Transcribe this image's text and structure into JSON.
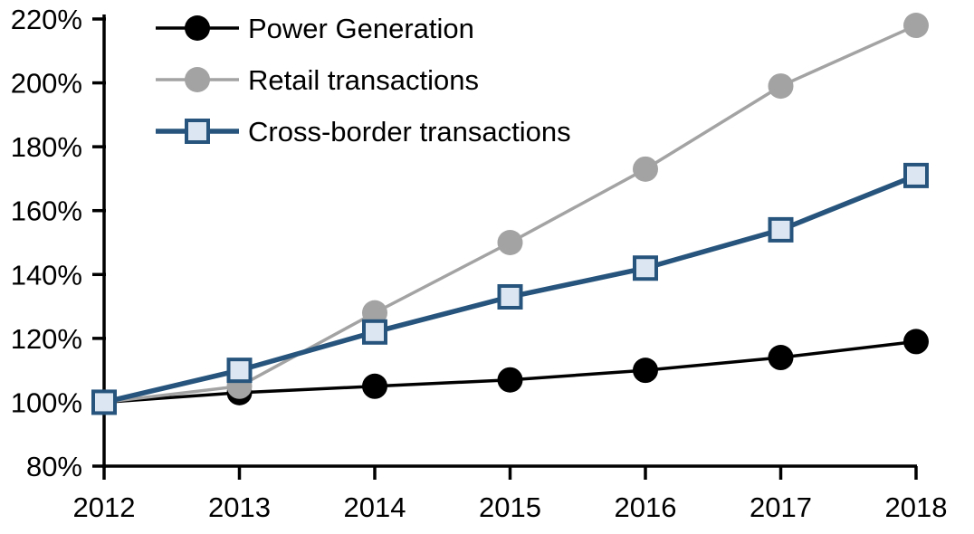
{
  "chart_data": {
    "type": "line",
    "title": "",
    "xlabel": "",
    "ylabel": "",
    "x_labels": [
      "2012",
      "2013",
      "2014",
      "2015",
      "2016",
      "2017",
      "2018"
    ],
    "y_tick_labels": [
      "80%",
      "100%",
      "120%",
      "140%",
      "160%",
      "180%",
      "200%",
      "220%"
    ],
    "ylim": [
      80,
      220
    ],
    "y_tick_step": 20,
    "grid": false,
    "legend_position": "top-left-inside",
    "axis_color": "#000000",
    "series": [
      {
        "name": "Power Generation",
        "values": [
          100,
          103,
          105,
          107,
          110,
          114,
          119
        ],
        "color": "#000000",
        "marker": "circle",
        "marker_fill": "#000000",
        "line_width": 3.5
      },
      {
        "name": "Retail transactions",
        "values": [
          100,
          105,
          128,
          150,
          173,
          199,
          218
        ],
        "color": "#A3A3A3",
        "marker": "circle",
        "marker_fill": "#A3A3A3",
        "line_width": 3.5
      },
      {
        "name": "Cross-border transactions",
        "values": [
          100,
          110,
          122,
          133,
          142,
          154,
          171
        ],
        "color": "#26547C",
        "marker": "square",
        "marker_fill": "#DCE6F2",
        "line_width": 5.5
      }
    ]
  }
}
